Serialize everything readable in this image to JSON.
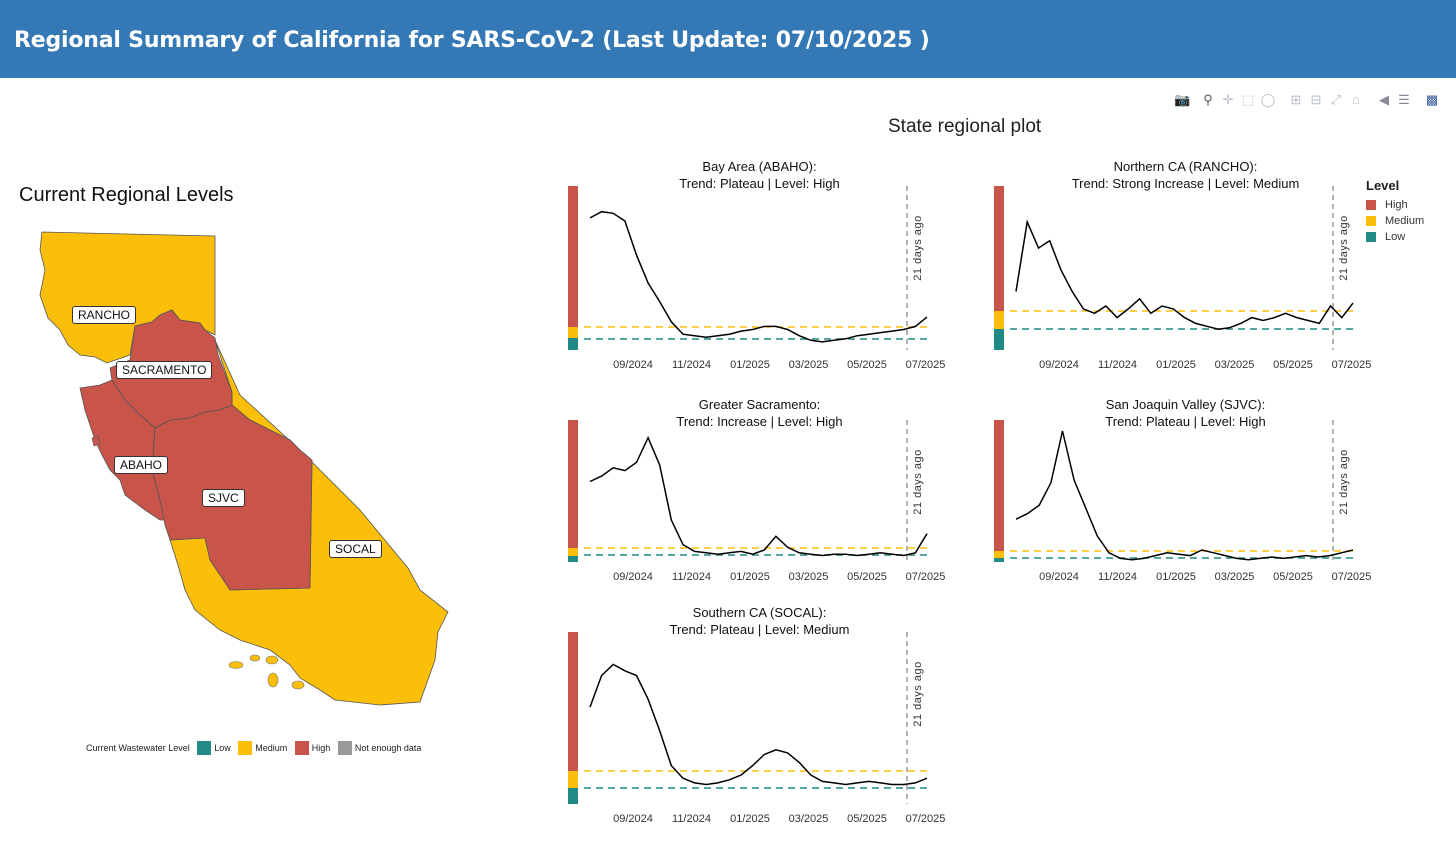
{
  "header": {
    "title": "Regional Summary of California for SARS-CoV-2 (Last Update: 07/10/2025 )"
  },
  "toolbar": {
    "icons": [
      "camera-icon",
      "zoom-icon",
      "pan-icon",
      "box-select-icon",
      "lasso-icon",
      "zoom-in-icon",
      "zoom-out-icon",
      "autoscale-icon",
      "home-icon",
      "spike-lines-icon",
      "compare-hover-icon",
      "plotly-logo-icon"
    ]
  },
  "map": {
    "title": "Current Regional Levels",
    "labels": {
      "rancho": "RANCHO",
      "sacramento": "SACRAMENTO",
      "abaho": "ABAHO",
      "sjvc": "SJVC",
      "socal": "SOCAL"
    },
    "legend": {
      "title": "Current Wastewater Level",
      "low": "Low",
      "medium": "Medium",
      "high": "High",
      "nodata": "Not enough data"
    },
    "colors": {
      "low": "#1f8a86",
      "medium": "#fbbf0a",
      "high": "#c8544a",
      "nodata": "#999999"
    }
  },
  "plot": {
    "title": "State regional plot",
    "annotation": "21 days ago",
    "x_ticks": [
      "09/2024",
      "11/2024",
      "01/2025",
      "03/2025",
      "05/2025",
      "07/2025"
    ],
    "level_legend": {
      "title": "Level",
      "high": "High",
      "medium": "Medium",
      "low": "Low"
    },
    "colors": {
      "high": "#c8544a",
      "medium": "#fbbf0a",
      "low": "#1f8a86",
      "line": "#000000"
    }
  },
  "chart_data": [
    {
      "type": "line",
      "title": "Bay Area (ABAHO):",
      "subtitle": "Trend: Plateau  | Level: High",
      "x_ticks": [
        "09/2024",
        "11/2024",
        "01/2025",
        "03/2025",
        "05/2025",
        "07/2025"
      ],
      "series": [
        {
          "values": [
            0.82,
            0.86,
            0.85,
            0.8,
            0.58,
            0.4,
            0.28,
            0.15,
            0.07,
            0.06,
            0.05,
            0.06,
            0.07,
            0.09,
            0.1,
            0.12,
            0.12,
            0.1,
            0.06,
            0.03,
            0.02,
            0.03,
            0.04,
            0.06,
            0.07,
            0.08,
            0.09,
            0.1,
            0.12,
            0.18
          ]
        }
      ]
    },
    {
      "type": "line",
      "title": "Northern CA (RANCHO):",
      "subtitle": "Trend: Strong Increase  | Level: Medium",
      "x_ticks": [
        "09/2024",
        "11/2024",
        "01/2025",
        "03/2025",
        "05/2025",
        "07/2025"
      ],
      "series": [
        {
          "values": [
            0.3,
            0.78,
            0.6,
            0.65,
            0.45,
            0.3,
            0.18,
            0.15,
            0.2,
            0.12,
            0.18,
            0.25,
            0.15,
            0.2,
            0.18,
            0.12,
            0.08,
            0.06,
            0.04,
            0.05,
            0.08,
            0.12,
            0.1,
            0.12,
            0.15,
            0.12,
            0.1,
            0.08,
            0.2,
            0.12,
            0.22
          ]
        }
      ]
    },
    {
      "type": "line",
      "title": "Greater Sacramento:",
      "subtitle": "Trend: Increase  | Level: High",
      "x_ticks": [
        "09/2024",
        "11/2024",
        "01/2025",
        "03/2025",
        "05/2025",
        "07/2025"
      ],
      "series": [
        {
          "values": [
            0.58,
            0.62,
            0.68,
            0.66,
            0.72,
            0.9,
            0.7,
            0.3,
            0.12,
            0.07,
            0.06,
            0.05,
            0.06,
            0.07,
            0.05,
            0.08,
            0.18,
            0.1,
            0.06,
            0.05,
            0.04,
            0.05,
            0.05,
            0.04,
            0.05,
            0.06,
            0.05,
            0.04,
            0.06,
            0.2
          ]
        }
      ]
    },
    {
      "type": "line",
      "title": "San Joaquin Valley (SJVC):",
      "subtitle": "Trend: Plateau  | Level: High",
      "x_ticks": [
        "09/2024",
        "11/2024",
        "01/2025",
        "03/2025",
        "05/2025",
        "07/2025"
      ],
      "series": [
        {
          "values": [
            0.32,
            0.36,
            0.42,
            0.58,
            0.95,
            0.6,
            0.4,
            0.2,
            0.08,
            0.04,
            0.03,
            0.04,
            0.06,
            0.08,
            0.07,
            0.06,
            0.1,
            0.08,
            0.06,
            0.04,
            0.03,
            0.04,
            0.05,
            0.04,
            0.05,
            0.06,
            0.05,
            0.06,
            0.08,
            0.1
          ]
        }
      ]
    },
    {
      "type": "line",
      "title": "Southern CA (SOCAL):",
      "subtitle": "Trend: Plateau  | Level: Medium",
      "x_ticks": [
        "09/2024",
        "11/2024",
        "01/2025",
        "03/2025",
        "05/2025",
        "07/2025"
      ],
      "series": [
        {
          "values": [
            0.55,
            0.75,
            0.82,
            0.78,
            0.75,
            0.6,
            0.4,
            0.18,
            0.1,
            0.07,
            0.06,
            0.07,
            0.09,
            0.12,
            0.18,
            0.25,
            0.28,
            0.26,
            0.2,
            0.12,
            0.08,
            0.07,
            0.06,
            0.07,
            0.08,
            0.07,
            0.06,
            0.06,
            0.07,
            0.1
          ]
        }
      ]
    }
  ]
}
